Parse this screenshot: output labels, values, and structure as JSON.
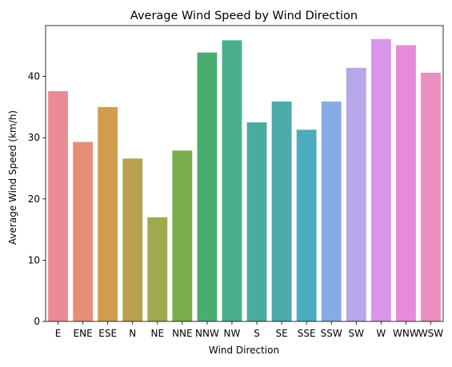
{
  "chart_data": {
    "type": "bar",
    "title": "Average Wind Speed by Wind Direction",
    "xlabel": "Wind Direction",
    "ylabel": "Average Wind Speed (km/h)",
    "categories": [
      "E",
      "ENE",
      "ESE",
      "N",
      "NE",
      "NNE",
      "NNW",
      "NW",
      "S",
      "SE",
      "SSE",
      "SSW",
      "SW",
      "W",
      "WNW",
      "WSW"
    ],
    "values": [
      37.6,
      29.3,
      35.0,
      26.6,
      17.0,
      27.9,
      43.9,
      45.9,
      32.5,
      35.9,
      31.3,
      35.9,
      41.4,
      46.1,
      45.1,
      40.6
    ],
    "ylim": [
      0,
      48.3
    ],
    "yticks": [
      0,
      10,
      20,
      30,
      40
    ],
    "grid": false,
    "legend": "none",
    "colors": [
      "#ea8c96",
      "#e78f76",
      "#d29c4d",
      "#b9a14d",
      "#a1a94d",
      "#7aad4d",
      "#4aad70",
      "#4aaf8d",
      "#4bab9f",
      "#4caaab",
      "#4dabbf",
      "#86abe6",
      "#b7a6ea",
      "#d996e9",
      "#e78ad9",
      "#ea8fbf"
    ]
  }
}
